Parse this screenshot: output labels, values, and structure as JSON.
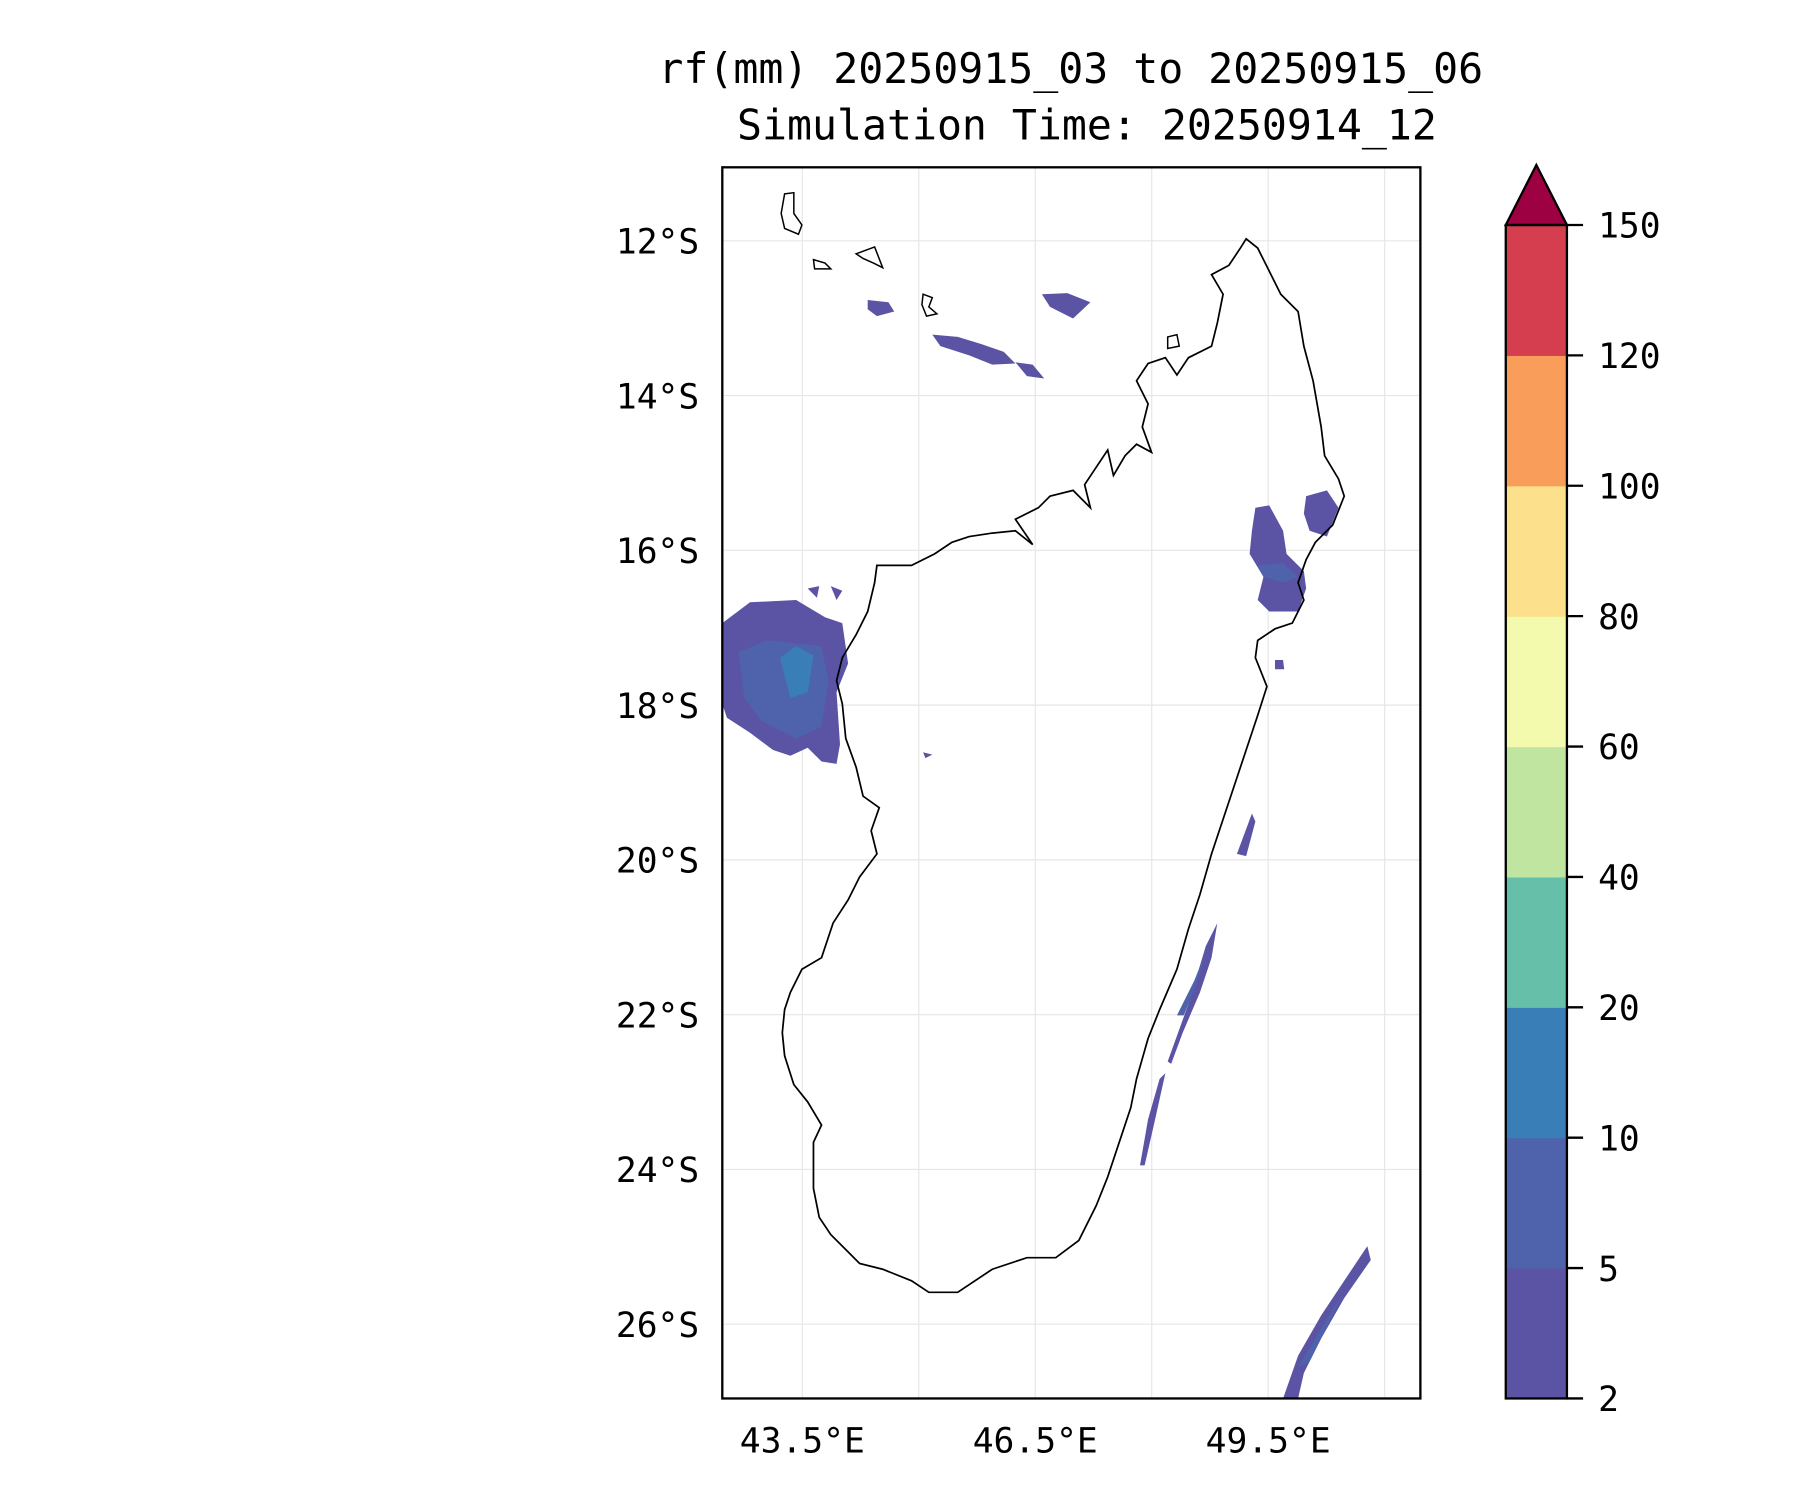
{
  "title": {
    "line1": "rf(mm) 20250915_03 to 20250915_06",
    "line2": "Simulation Time: 20250914_12"
  },
  "chart_data": {
    "type": "contour-map",
    "title": "rf(mm) 20250915_03 to 20250915_06 / Simulation Time: 20250914_12",
    "variable": "rf(mm)",
    "lon_range": [
      42.47,
      51.46
    ],
    "lat_range": [
      -26.96,
      -11.05
    ],
    "lat_ticks": [
      {
        "value": -12,
        "label": "12°S"
      },
      {
        "value": -14,
        "label": "14°S"
      },
      {
        "value": -16,
        "label": "16°S"
      },
      {
        "value": -18,
        "label": "18°S"
      },
      {
        "value": -20,
        "label": "20°S"
      },
      {
        "value": -22,
        "label": "22°S"
      },
      {
        "value": -24,
        "label": "24°S"
      },
      {
        "value": -26,
        "label": "26°S"
      }
    ],
    "lon_ticks": [
      {
        "value": 43.5,
        "label": "43.5°E"
      },
      {
        "value": 46.5,
        "label": "46.5°E"
      },
      {
        "value": 49.5,
        "label": "49.5°E"
      }
    ],
    "lon_gridlines": [
      43.5,
      45,
      46.5,
      48,
      49.5,
      51
    ],
    "grid": true,
    "colorbar": {
      "levels": [
        2,
        5,
        10,
        20,
        40,
        60,
        80,
        100,
        120,
        150
      ],
      "labels": [
        "2",
        "5",
        "10",
        "20",
        "40",
        "60",
        "80",
        "100",
        "120",
        "150"
      ],
      "colors": [
        "#5b53a4",
        "#4f62ac",
        "#3a7eb8",
        "#65bfa9",
        "#bfe5a0",
        "#f4faad",
        "#fce08b",
        "#f99d5a",
        "#d53e4f"
      ],
      "extend_color": "#9e0142",
      "extend": "max"
    }
  }
}
